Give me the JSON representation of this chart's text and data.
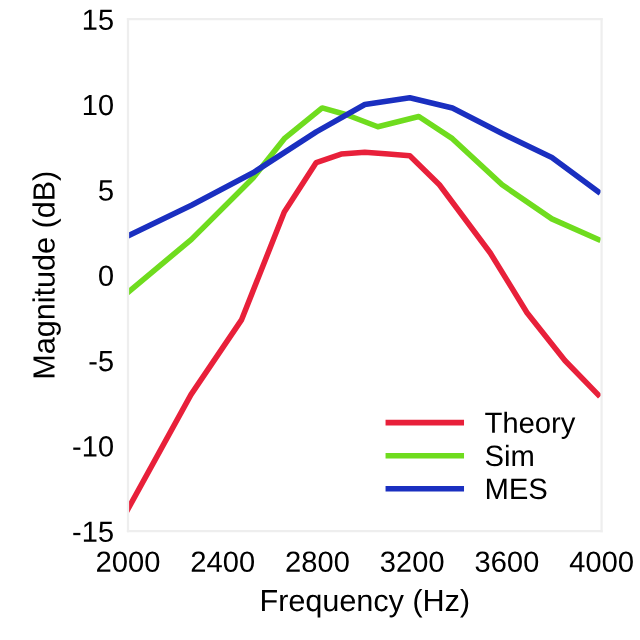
{
  "chart_data": {
    "type": "line",
    "xlabel": "Frequency (Hz)",
    "ylabel": "Magnitude (dB)",
    "xlim": [
      2000,
      4000
    ],
    "xticks": [
      2000,
      2400,
      2800,
      3200,
      3600,
      4000
    ],
    "ylim": [
      -15,
      15
    ],
    "yticks": [
      -15,
      -10,
      -5,
      0,
      5,
      10,
      15
    ],
    "legend": "bottom right",
    "grid": false,
    "marker": "none",
    "line_style": "solid",
    "series": [
      {
        "name": "Theory",
        "color": "#e8203a",
        "x": [
          2000,
          2266,
          2480,
          2660,
          2795,
          2900,
          3000,
          3100,
          3190,
          3315,
          3530,
          3685,
          3845,
          3985
        ],
        "values": [
          -13.7,
          -7.0,
          -2.6,
          3.7,
          6.6,
          7.1,
          7.2,
          7.1,
          7.0,
          5.3,
          1.3,
          -2.2,
          -5.0,
          -7.0
        ]
      },
      {
        "name": "Sim",
        "color": "#6fdc1e",
        "x": [
          2000,
          2268,
          2528,
          2660,
          2820,
          2923,
          3055,
          3228,
          3370,
          3580,
          3790,
          3985
        ],
        "values": [
          -1.0,
          2.1,
          5.7,
          8.0,
          9.8,
          9.4,
          8.7,
          9.3,
          8.0,
          5.3,
          3.3,
          2.1
        ]
      },
      {
        "name": "MES",
        "color": "#1a2fc0",
        "x": [
          2000,
          2268,
          2528,
          2795,
          3000,
          3190,
          3370,
          3580,
          3790,
          3985
        ],
        "values": [
          2.3,
          4.1,
          6.0,
          8.4,
          10.0,
          10.4,
          9.8,
          8.3,
          6.9,
          4.9
        ]
      }
    ]
  }
}
